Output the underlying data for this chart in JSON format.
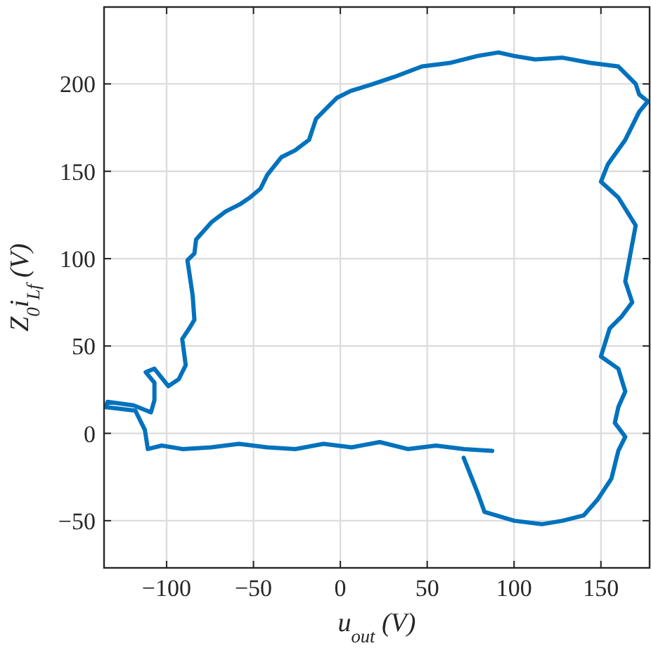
{
  "chart_data": {
    "type": "line",
    "xlabel": "u$_{out}$ (V)",
    "ylabel": "Z$_{0}$i$_{Lf}$ (V)",
    "xlim": [
      -136,
      178
    ],
    "ylim": [
      -77,
      244
    ],
    "xticks": [
      -100,
      -50,
      0,
      50,
      100,
      150
    ],
    "yticks": [
      -50,
      0,
      50,
      100,
      150,
      200
    ],
    "grid": true,
    "line_style": "solid",
    "marker": "none",
    "series": [
      {
        "color": "#0072bd",
        "x": [
          87.4,
          71.2,
          55,
          38.8,
          22.7,
          6.5,
          -9.7,
          -25.9,
          -42.1,
          -58.3,
          -74.4,
          -90.6,
          -102.8,
          -110.8,
          -112.5,
          -118,
          -135,
          -134,
          -119,
          -109,
          -107,
          -107,
          -112,
          -107,
          -99,
          -93,
          -89,
          -91,
          -87,
          -84,
          -85,
          -88,
          -84,
          -83,
          -74,
          -66,
          -58,
          -52,
          -46,
          -42,
          -34,
          -26,
          -18,
          -14,
          -6,
          -2,
          6,
          19,
          31,
          47,
          63,
          79,
          91,
          100,
          112,
          128,
          144,
          160,
          170,
          172,
          177,
          172,
          168,
          164,
          154,
          150,
          160,
          170,
          167,
          164,
          168,
          162,
          155,
          150,
          160,
          164,
          160,
          158,
          164,
          160,
          156,
          148,
          140,
          128,
          116,
          100,
          83,
          79,
          71
        ],
        "values": [
          -10,
          -9,
          -7,
          -9,
          -5,
          -8,
          -6,
          -9,
          -8,
          -6,
          -8,
          -9,
          -7,
          -9,
          2,
          13,
          15,
          18,
          16,
          12,
          19,
          29,
          35,
          37,
          27,
          31,
          39,
          54,
          60,
          65,
          79,
          99,
          103,
          111,
          121,
          127,
          131,
          135,
          140,
          148,
          158,
          162,
          168,
          180,
          188,
          192,
          196,
          200,
          204,
          210,
          212,
          216,
          218,
          216,
          214,
          215,
          212,
          210,
          200,
          194,
          190,
          184,
          176,
          168,
          154,
          144,
          135,
          119,
          103,
          87,
          75,
          67,
          60,
          44,
          37,
          24,
          15,
          6,
          -2,
          -10,
          -26,
          -38,
          -47,
          -50,
          -52,
          -50,
          -45,
          -34,
          -14
        ]
      }
    ]
  }
}
